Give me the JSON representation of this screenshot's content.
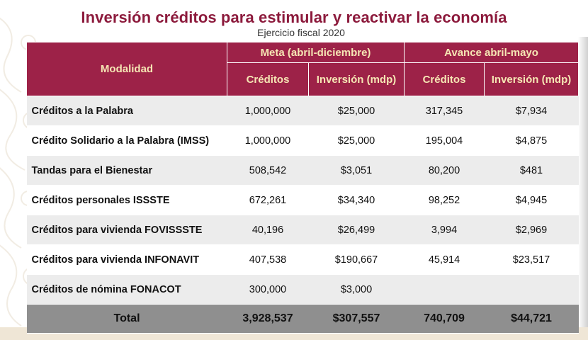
{
  "title": "Inversión créditos para estimular y reactivar la economía",
  "subtitle": "Ejercicio fiscal 2020",
  "header": {
    "modalidad": "Modalidad",
    "group_meta": "Meta (abril-diciembre)",
    "group_avance": "Avance abril-mayo",
    "col_creditos_meta": "Créditos",
    "col_inversion_meta": "Inversión (mdp)",
    "col_creditos_avance": "Créditos",
    "col_inversion_avance": "Inversión (mdp)"
  },
  "rows": [
    {
      "name": "Créditos a la Palabra",
      "meta_creditos": "1,000,000",
      "meta_inversion": "$25,000",
      "avance_creditos": "317,345",
      "avance_inversion": "$7,934"
    },
    {
      "name": "Crédito Solidario a la Palabra (IMSS)",
      "meta_creditos": "1,000,000",
      "meta_inversion": "$25,000",
      "avance_creditos": "195,004",
      "avance_inversion": "$4,875"
    },
    {
      "name": "Tandas para el Bienestar",
      "meta_creditos": "508,542",
      "meta_inversion": "$3,051",
      "avance_creditos": "80,200",
      "avance_inversion": "$481"
    },
    {
      "name": "Créditos personales ISSSTE",
      "meta_creditos": "672,261",
      "meta_inversion": "$34,340",
      "avance_creditos": "98,252",
      "avance_inversion": "$4,945"
    },
    {
      "name": "Créditos para vivienda FOVISSSTE",
      "meta_creditos": "40,196",
      "meta_inversion": "$26,499",
      "avance_creditos": "3,994",
      "avance_inversion": "$2,969"
    },
    {
      "name": "Créditos para vivienda INFONAVIT",
      "meta_creditos": "407,538",
      "meta_inversion": "$190,667",
      "avance_creditos": "45,914",
      "avance_inversion": "$23,517"
    },
    {
      "name": "Créditos de nómina FONACOT",
      "meta_creditos": "300,000",
      "meta_inversion": "$3,000",
      "avance_creditos": "",
      "avance_inversion": ""
    }
  ],
  "total": {
    "label": "Total",
    "meta_creditos": "3,928,537",
    "meta_inversion": "$307,557",
    "avance_creditos": "740,709",
    "avance_inversion": "$44,721"
  },
  "colors": {
    "header_bg": "#9d2248",
    "header_text": "#f6e6b4",
    "title": "#8c1a3c",
    "total_bg": "#8f8f8f"
  }
}
